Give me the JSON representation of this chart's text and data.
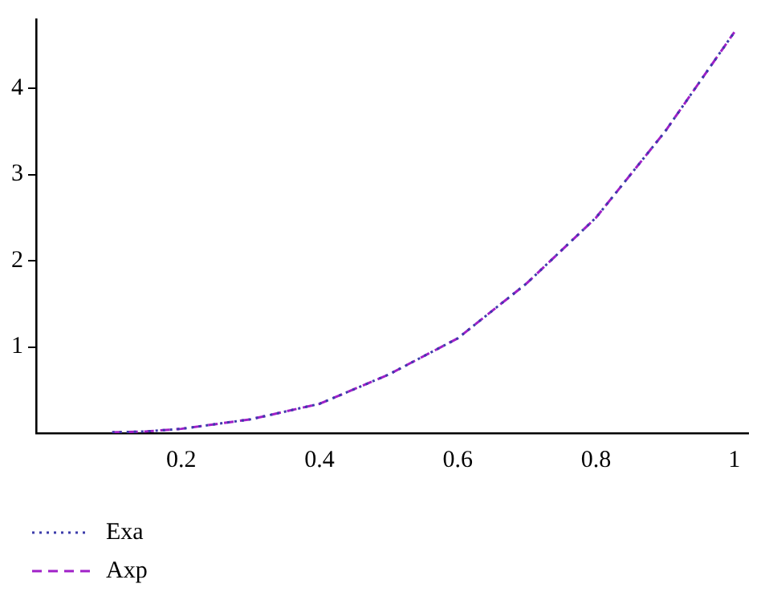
{
  "chart_data": {
    "type": "line",
    "x": [
      0.1,
      0.15,
      0.2,
      0.3,
      0.4,
      0.5,
      0.6,
      0.7,
      0.8,
      0.9,
      1.0
    ],
    "series": [
      {
        "name": "Exa",
        "color": "#3c3caa",
        "line_style": "dotted",
        "values": [
          0.01,
          0.02,
          0.05,
          0.16,
          0.34,
          0.68,
          1.1,
          1.74,
          2.5,
          3.5,
          4.65
        ]
      },
      {
        "name": "Axp",
        "color": "#a020c8",
        "line_style": "dashed",
        "values": [
          0.01,
          0.02,
          0.05,
          0.16,
          0.34,
          0.68,
          1.1,
          1.74,
          2.5,
          3.5,
          4.65
        ]
      }
    ],
    "xlim": [
      -0.01,
      1.02
    ],
    "xticks": [
      0.2,
      0.4,
      0.6,
      0.8,
      1
    ],
    "ylim": [
      0,
      4.8
    ],
    "yticks": [
      1,
      2,
      3,
      4
    ],
    "grid": false,
    "legend": "bottom left",
    "marker": "none"
  }
}
